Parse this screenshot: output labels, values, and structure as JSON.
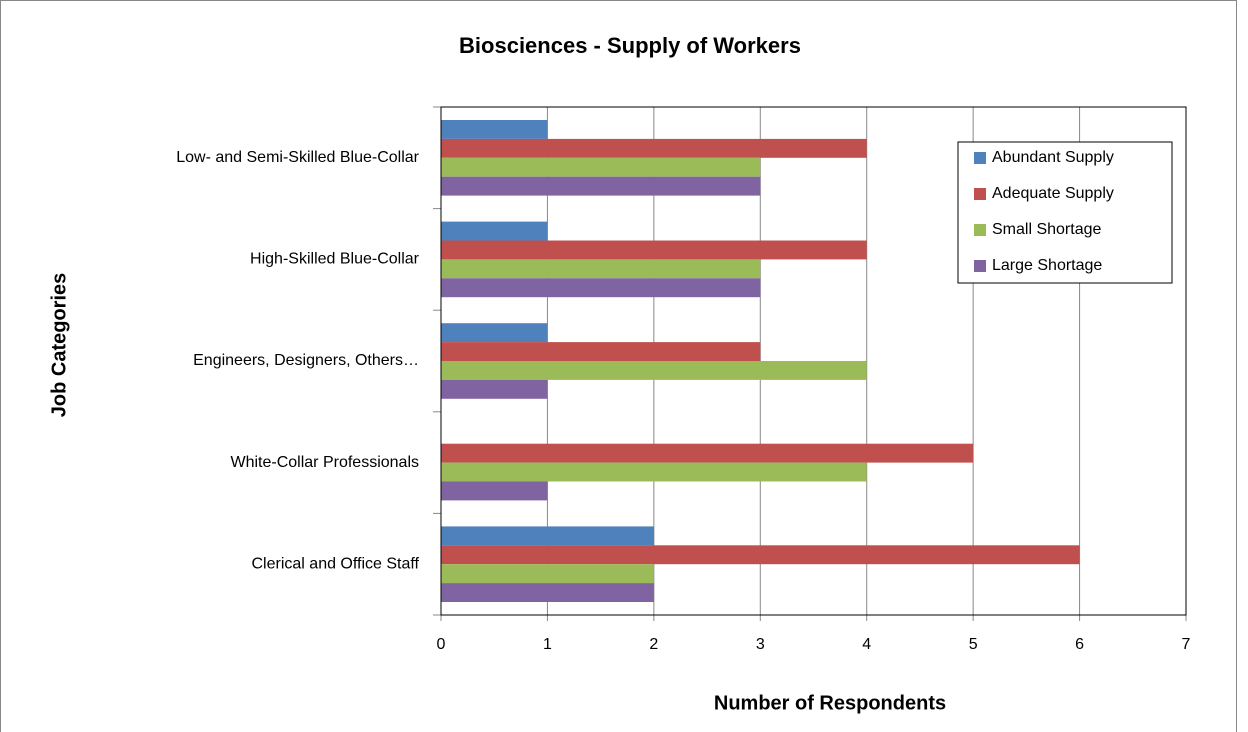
{
  "chart_data": {
    "type": "bar",
    "orientation": "horizontal",
    "title": "Biosciences - Supply of Workers",
    "x_label": "Number of Respondents",
    "y_label": "Job Categories",
    "categories": [
      "Low- and Semi-Skilled Blue-Collar",
      "High-Skilled Blue-Collar",
      "Engineers, Designers, Others…",
      "White-Collar Professionals",
      "Clerical and Office Staff"
    ],
    "series": [
      {
        "name": "Abundant Supply",
        "color": "#4f81bd",
        "values": [
          1,
          1,
          1,
          0,
          2
        ]
      },
      {
        "name": "Adequate Supply",
        "color": "#c0504d",
        "values": [
          4,
          4,
          3,
          5,
          6
        ]
      },
      {
        "name": "Small Shortage",
        "color": "#9bbb59",
        "values": [
          3,
          3,
          4,
          4,
          2
        ]
      },
      {
        "name": "Large Shortage",
        "color": "#8064a2",
        "values": [
          3,
          3,
          1,
          1,
          2
        ]
      }
    ],
    "xlim": [
      0,
      7
    ],
    "xticks": [
      0,
      1,
      2,
      3,
      4,
      5,
      6,
      7
    ],
    "grid": true,
    "legend": "upper right"
  }
}
